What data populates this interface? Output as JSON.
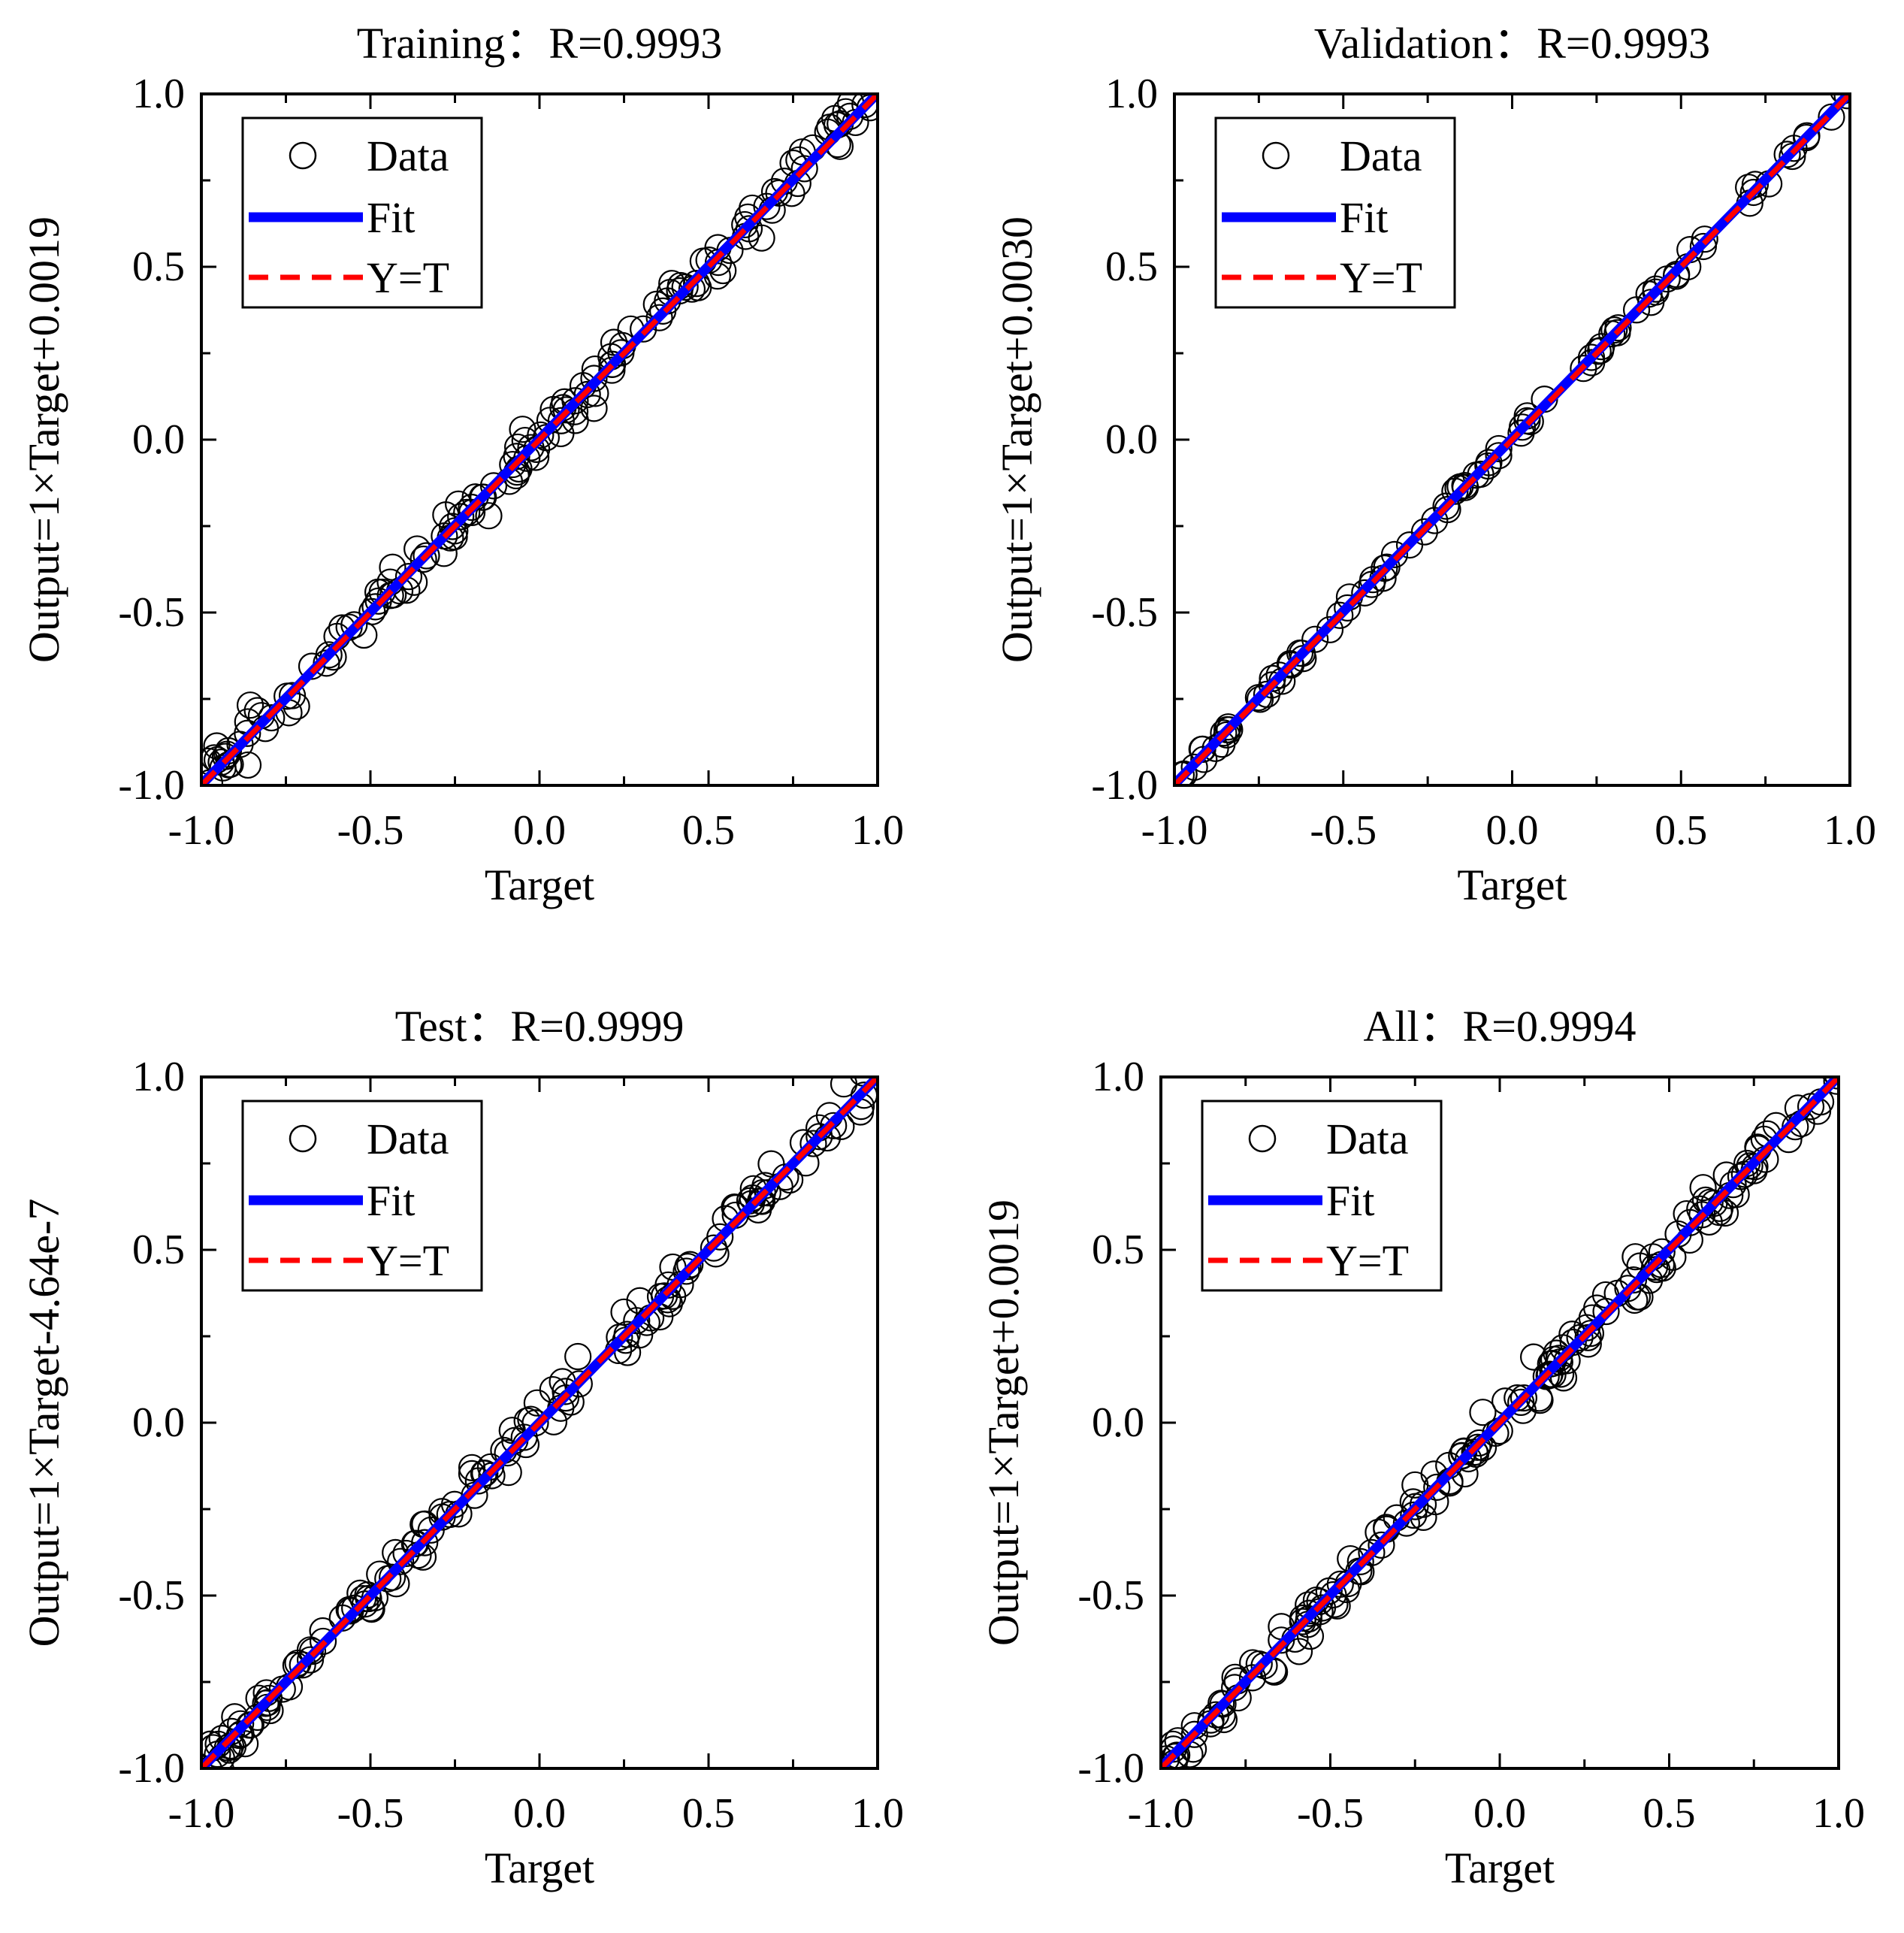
{
  "colors": {
    "fit": "#0000ff",
    "identity": "#ff0000",
    "marker": "#000000",
    "axes": "#000000"
  },
  "chart_data": [
    {
      "type": "scatter",
      "title": "Training：R=0.9993",
      "xlabel": "Target",
      "ylabel": "Output=1×Target+0.0019",
      "xlim": [
        -1.0,
        1.0
      ],
      "ylim": [
        -1.0,
        1.0
      ],
      "xticks": [
        "-1.0",
        "-0.5",
        "0.0",
        "0.5",
        "1.0"
      ],
      "yticks": [
        "-1.0",
        "-0.5",
        "0.0",
        "0.5",
        "1.0"
      ],
      "fit": {
        "slope": 1,
        "intercept": 0.0019
      },
      "legend": {
        "position": "top-left",
        "entries": [
          "Data",
          "Fit",
          "Y=T"
        ]
      },
      "n_points": 150,
      "spread": 0.03,
      "seed": 11,
      "extra_points": [
        [
          0.75,
          0.8
        ],
        [
          0.88,
          0.91
        ],
        [
          0.62,
          0.61
        ],
        [
          0.27,
          0.32
        ],
        [
          -0.05,
          0.03
        ],
        [
          -0.15,
          -0.22
        ],
        [
          -0.92,
          -0.9
        ],
        [
          -0.98,
          -0.93
        ]
      ]
    },
    {
      "type": "scatter",
      "title": "Validation：R=0.9993",
      "xlabel": "Target",
      "ylabel": "Output=1×Target+0.0030",
      "xlim": [
        -1.0,
        1.0
      ],
      "ylim": [
        -1.0,
        1.0
      ],
      "xticks": [
        "-1.0",
        "-0.5",
        "0.0",
        "0.5",
        "1.0"
      ],
      "yticks": [
        "-1.0",
        "-0.5",
        "0.0",
        "0.5",
        "1.0"
      ],
      "fit": {
        "slope": 1,
        "intercept": 0.003
      },
      "legend": {
        "position": "top-left",
        "entries": [
          "Data",
          "Fit",
          "Y=T"
        ]
      },
      "n_points": 90,
      "spread": 0.012,
      "seed": 23,
      "extra_points": [
        [
          0.7,
          0.73
        ],
        [
          0.76,
          0.74
        ],
        [
          0.57,
          0.58
        ],
        [
          0.52,
          0.5
        ],
        [
          -0.98,
          -0.97
        ]
      ]
    },
    {
      "type": "scatter",
      "title": "Test：R=0.9999",
      "xlabel": "Target",
      "ylabel": "Output=1×Target-4.64e-7",
      "xlim": [
        -1.0,
        1.0
      ],
      "ylim": [
        -1.0,
        1.0
      ],
      "xticks": [
        "-1.0",
        "-0.5",
        "0.0",
        "0.5",
        "1.0"
      ],
      "yticks": [
        "-1.0",
        "-0.5",
        "0.0",
        "0.5",
        "1.0"
      ],
      "fit": {
        "slope": 1,
        "intercept": -4.64e-07
      },
      "legend": {
        "position": "top-left",
        "entries": [
          "Data",
          "Fit",
          "Y=T"
        ]
      },
      "n_points": 150,
      "spread": 0.028,
      "seed": 37,
      "extra_points": [
        [
          0.9,
          0.98
        ],
        [
          0.78,
          0.81
        ],
        [
          0.55,
          0.59
        ],
        [
          0.25,
          0.32
        ],
        [
          -0.2,
          -0.13
        ],
        [
          -0.95,
          -0.93
        ]
      ]
    },
    {
      "type": "scatter",
      "title": "All：R=0.9994",
      "xlabel": "Target",
      "ylabel": "Output=1×Target+0.0019",
      "xlim": [
        -1.0,
        1.0
      ],
      "ylim": [
        -1.0,
        1.0
      ],
      "xticks": [
        "-1.0",
        "-0.5",
        "0.0",
        "0.5",
        "1.0"
      ],
      "yticks": [
        "-1.0",
        "-0.5",
        "0.0",
        "0.5",
        "1.0"
      ],
      "fit": {
        "slope": 1,
        "intercept": 0.0019
      },
      "legend": {
        "position": "top-left",
        "entries": [
          "Data",
          "Fit",
          "Y=T"
        ]
      },
      "n_points": 170,
      "spread": 0.03,
      "seed": 53,
      "extra_points": [
        [
          0.88,
          0.91
        ],
        [
          0.78,
          0.82
        ],
        [
          0.6,
          0.68
        ],
        [
          0.4,
          0.48
        ],
        [
          0.1,
          0.19
        ],
        [
          -0.05,
          0.03
        ],
        [
          -0.25,
          -0.18
        ],
        [
          -0.95,
          -0.92
        ]
      ]
    }
  ]
}
